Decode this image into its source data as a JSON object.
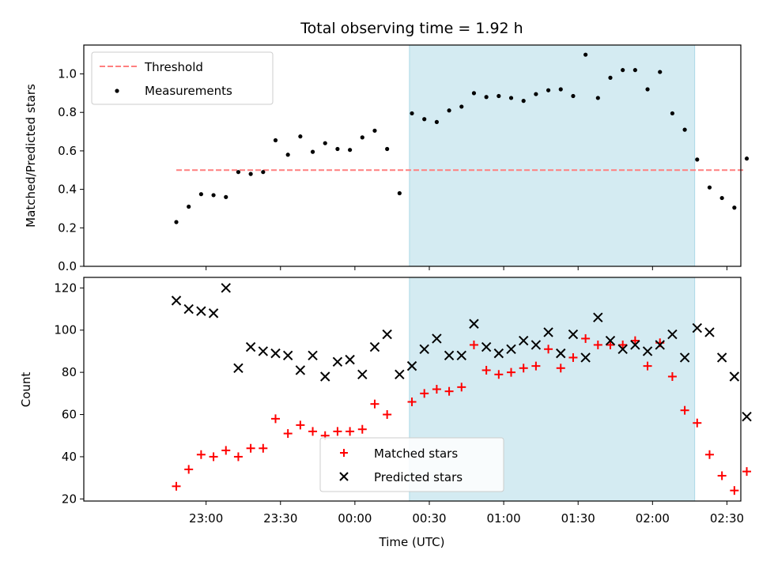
{
  "chart_data": [
    {
      "type": "scatter",
      "title": "Total observing time = 1.92 h",
      "ylabel": "Matched/Predicted stars",
      "ylim": [
        0.0,
        1.15
      ],
      "yticks": [
        "0.0",
        "0.2",
        "0.4",
        "0.6",
        "0.8",
        "1.0"
      ],
      "threshold": {
        "name": "Threshold",
        "value": 0.5,
        "x_start": "22:48",
        "x_end": "02:37",
        "color": "#ff7f7f"
      },
      "highlight": {
        "x_start": "00:22",
        "x_end": "02:17",
        "color": "#add8e6"
      },
      "series": [
        {
          "name": "Measurements",
          "color": "#000000",
          "x": [
            "22:48",
            "22:53",
            "22:58",
            "23:03",
            "23:08",
            "23:13",
            "23:18",
            "23:23",
            "23:28",
            "23:33",
            "23:38",
            "23:43",
            "23:48",
            "23:53",
            "23:58",
            "00:03",
            "00:08",
            "00:13",
            "00:18",
            "00:23",
            "00:28",
            "00:33",
            "00:38",
            "00:43",
            "00:48",
            "00:53",
            "00:58",
            "01:03",
            "01:08",
            "01:13",
            "01:18",
            "01:23",
            "01:28",
            "01:33",
            "01:38",
            "01:43",
            "01:48",
            "01:53",
            "01:58",
            "02:03",
            "02:08",
            "02:13",
            "02:18",
            "02:23",
            "02:28",
            "02:33",
            "02:38"
          ],
          "y": [
            0.23,
            0.31,
            0.375,
            0.37,
            0.36,
            0.49,
            0.48,
            0.49,
            0.655,
            0.58,
            0.675,
            0.595,
            0.64,
            0.61,
            0.605,
            0.67,
            0.705,
            0.61,
            0.38,
            0.795,
            0.765,
            0.75,
            0.81,
            0.83,
            0.9,
            0.88,
            0.885,
            0.875,
            0.86,
            0.895,
            0.915,
            0.92,
            0.885,
            1.1,
            0.875,
            0.98,
            1.02,
            1.02,
            0.92,
            1.01,
            0.795,
            0.71,
            0.555,
            0.41,
            0.355,
            0.305,
            0.56
          ]
        }
      ],
      "legend_placement": "upper-left"
    },
    {
      "type": "scatter",
      "xlabel": "Time (UTC)",
      "ylabel": "Count",
      "ylim": [
        19,
        125
      ],
      "yticks": [
        "20",
        "40",
        "60",
        "80",
        "100",
        "120"
      ],
      "xticks": [
        "23:00",
        "23:30",
        "00:00",
        "00:30",
        "01:00",
        "01:30",
        "02:00",
        "02:30"
      ],
      "highlight": {
        "x_start": "00:22",
        "x_end": "02:17",
        "color": "#add8e6"
      },
      "series": [
        {
          "name": "Matched stars",
          "marker": "plus",
          "color": "#ff0000",
          "x": [
            "22:48",
            "22:53",
            "22:58",
            "23:03",
            "23:08",
            "23:13",
            "23:18",
            "23:23",
            "23:28",
            "23:33",
            "23:38",
            "23:43",
            "23:48",
            "23:53",
            "23:58",
            "00:03",
            "00:08",
            "00:13",
            "00:18",
            "00:23",
            "00:28",
            "00:33",
            "00:38",
            "00:43",
            "00:48",
            "00:53",
            "00:58",
            "01:03",
            "01:08",
            "01:13",
            "01:18",
            "01:23",
            "01:28",
            "01:33",
            "01:38",
            "01:43",
            "01:48",
            "01:53",
            "01:58",
            "02:03",
            "02:08",
            "02:13",
            "02:18",
            "02:23",
            "02:28",
            "02:33",
            "02:38"
          ],
          "y": [
            26,
            34,
            41,
            40,
            43,
            40,
            44,
            44,
            58,
            51,
            55,
            52,
            50,
            52,
            52,
            53,
            65,
            60,
            null,
            66,
            70,
            72,
            71,
            73,
            93,
            81,
            79,
            80,
            82,
            83,
            91,
            82,
            87,
            96,
            93,
            93,
            93,
            95,
            83,
            94,
            78,
            62,
            56,
            41,
            31,
            24,
            33
          ]
        },
        {
          "name": "Predicted stars",
          "marker": "x",
          "color": "#000000",
          "x": [
            "22:48",
            "22:53",
            "22:58",
            "23:03",
            "23:08",
            "23:13",
            "23:18",
            "23:23",
            "23:28",
            "23:33",
            "23:38",
            "23:43",
            "23:48",
            "23:53",
            "23:58",
            "00:03",
            "00:08",
            "00:13",
            "00:18",
            "00:23",
            "00:28",
            "00:33",
            "00:38",
            "00:43",
            "00:48",
            "00:53",
            "00:58",
            "01:03",
            "01:08",
            "01:13",
            "01:18",
            "01:23",
            "01:28",
            "01:33",
            "01:38",
            "01:43",
            "01:48",
            "01:53",
            "01:58",
            "02:03",
            "02:08",
            "02:13",
            "02:18",
            "02:23",
            "02:28",
            "02:33",
            "02:38"
          ],
          "y": [
            114,
            110,
            109,
            108,
            120,
            82,
            92,
            90,
            89,
            88,
            81,
            88,
            78,
            85,
            86,
            79,
            92,
            98,
            79,
            83,
            91,
            96,
            88,
            88,
            103,
            92,
            89,
            91,
            95,
            93,
            99,
            89,
            98,
            87,
            106,
            95,
            91,
            93,
            90,
            93,
            98,
            87,
            101,
            99,
            87,
            78,
            59
          ]
        }
      ],
      "legend_placement": "lower-center"
    }
  ]
}
